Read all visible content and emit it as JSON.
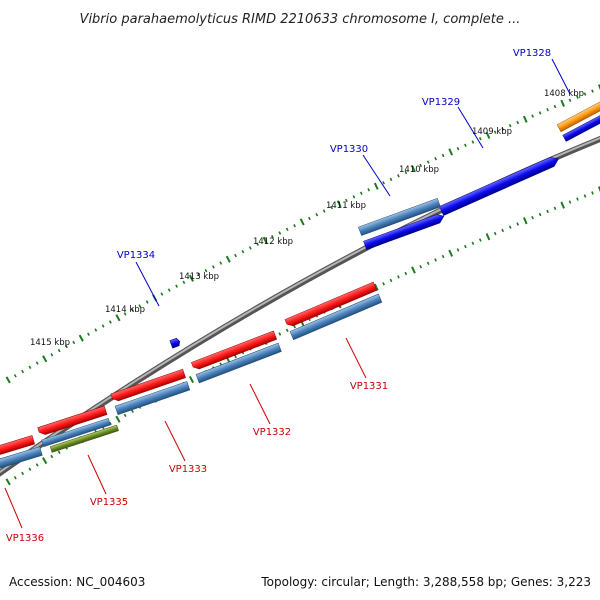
{
  "title": "Vibrio parahaemolyticus RIMD 2210633 chromosome I, complete ...",
  "footer": {
    "accession": "Accession: NC_004603",
    "summary": "Topology: circular; Length: 3,288,558 bp; Genes: 3,223"
  },
  "scale_labels": [
    "1408 kbp",
    "1409 kbp",
    "1410 kbp",
    "1411 kbp",
    "1412 kbp",
    "1413 kbp",
    "1414 kbp",
    "1415 kbp"
  ],
  "genes_upper": [
    "VP1328",
    "VP1329",
    "VP1330",
    "VP1334"
  ],
  "genes_lower": [
    "VP1331",
    "VP1332",
    "VP1333",
    "VP1335",
    "VP1336"
  ],
  "colors": {
    "backbone": "#8a8a8a",
    "tick": "#1d7a1d",
    "label_blue": "#0000cc",
    "label_red": "#cc0000",
    "red": "#ff1a1a",
    "steel": "#4a82bb",
    "blue": "#0a0aee",
    "orange": "#ff8c00",
    "olive": "#6b8e23"
  }
}
